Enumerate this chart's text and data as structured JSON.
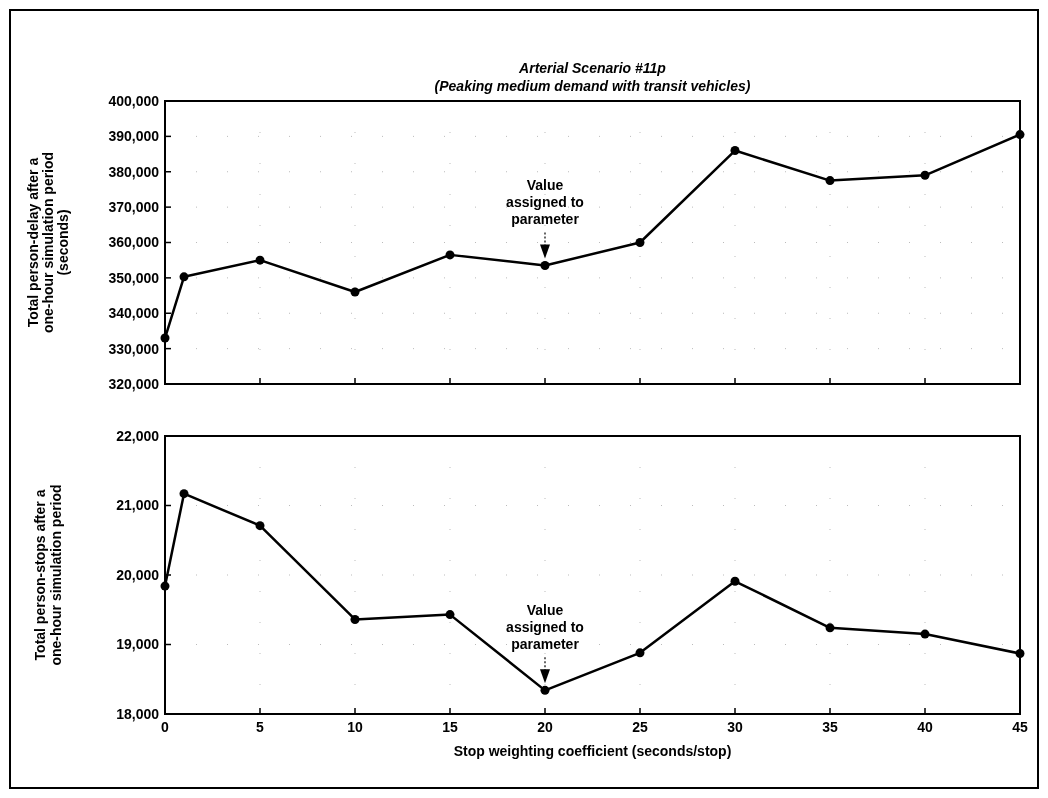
{
  "chart_data": [
    {
      "type": "line",
      "title": "Arterial Scenario #11p",
      "subtitle": "(Peaking medium demand with transit vehicles)",
      "ylabel": "Total person-delay after a one-hour simulation period (seconds)",
      "x": [
        0,
        1,
        5,
        10,
        15,
        20,
        25,
        30,
        35,
        40,
        45
      ],
      "series": [
        {
          "color": "#000000",
          "values": [
            333000,
            350300,
            355000,
            346000,
            356500,
            353500,
            360000,
            386000,
            377500,
            379000,
            390500
          ]
        }
      ],
      "xlim": [
        0,
        45
      ],
      "xticks": [
        0,
        5,
        10,
        15,
        20,
        25,
        30,
        35,
        40,
        45
      ],
      "ylim": [
        320000,
        400000
      ],
      "yticks": [
        {
          "value": 320000,
          "label": "320,000"
        },
        {
          "value": 330000,
          "label": "330,000"
        },
        {
          "value": 340000,
          "label": "340,000"
        },
        {
          "value": 350000,
          "label": "350,000"
        },
        {
          "value": 360000,
          "label": "360,000"
        },
        {
          "value": 370000,
          "label": "370,000"
        },
        {
          "value": 380000,
          "label": "380,000"
        },
        {
          "value": 390000,
          "label": "390,000"
        },
        {
          "value": 400000,
          "label": "400,000"
        }
      ],
      "tick_labels": "y",
      "grid": true,
      "marker": "circle",
      "line_style": "solid",
      "annotations": [
        {
          "text": "Value assigned to parameter",
          "x": 20,
          "y": 353500
        }
      ]
    },
    {
      "type": "line",
      "xlabel": "Stop weighting coefficient (seconds/stop)",
      "ylabel": "Total person-stops after a one-hour simulation period",
      "x": [
        0,
        1,
        5,
        10,
        15,
        20,
        25,
        30,
        35,
        40,
        45
      ],
      "series": [
        {
          "color": "#000000",
          "values": [
            19840,
            21170,
            20710,
            19360,
            19430,
            18340,
            18880,
            19910,
            19240,
            19150,
            18870
          ]
        }
      ],
      "xlim": [
        0,
        45
      ],
      "xticks": [
        0,
        5,
        10,
        15,
        20,
        25,
        30,
        35,
        40,
        45
      ],
      "ylim": [
        18000,
        22000
      ],
      "yticks": [
        {
          "value": 18000,
          "label": "18,000"
        },
        {
          "value": 19000,
          "label": "19,000"
        },
        {
          "value": 20000,
          "label": "20,000"
        },
        {
          "value": 21000,
          "label": "21,000"
        },
        {
          "value": 22000,
          "label": "22,000"
        }
      ],
      "grid": true,
      "marker": "circle",
      "line_style": "solid",
      "annotations": [
        {
          "text": "Value assigned to parameter",
          "x": 20,
          "y": 18340
        }
      ]
    }
  ]
}
